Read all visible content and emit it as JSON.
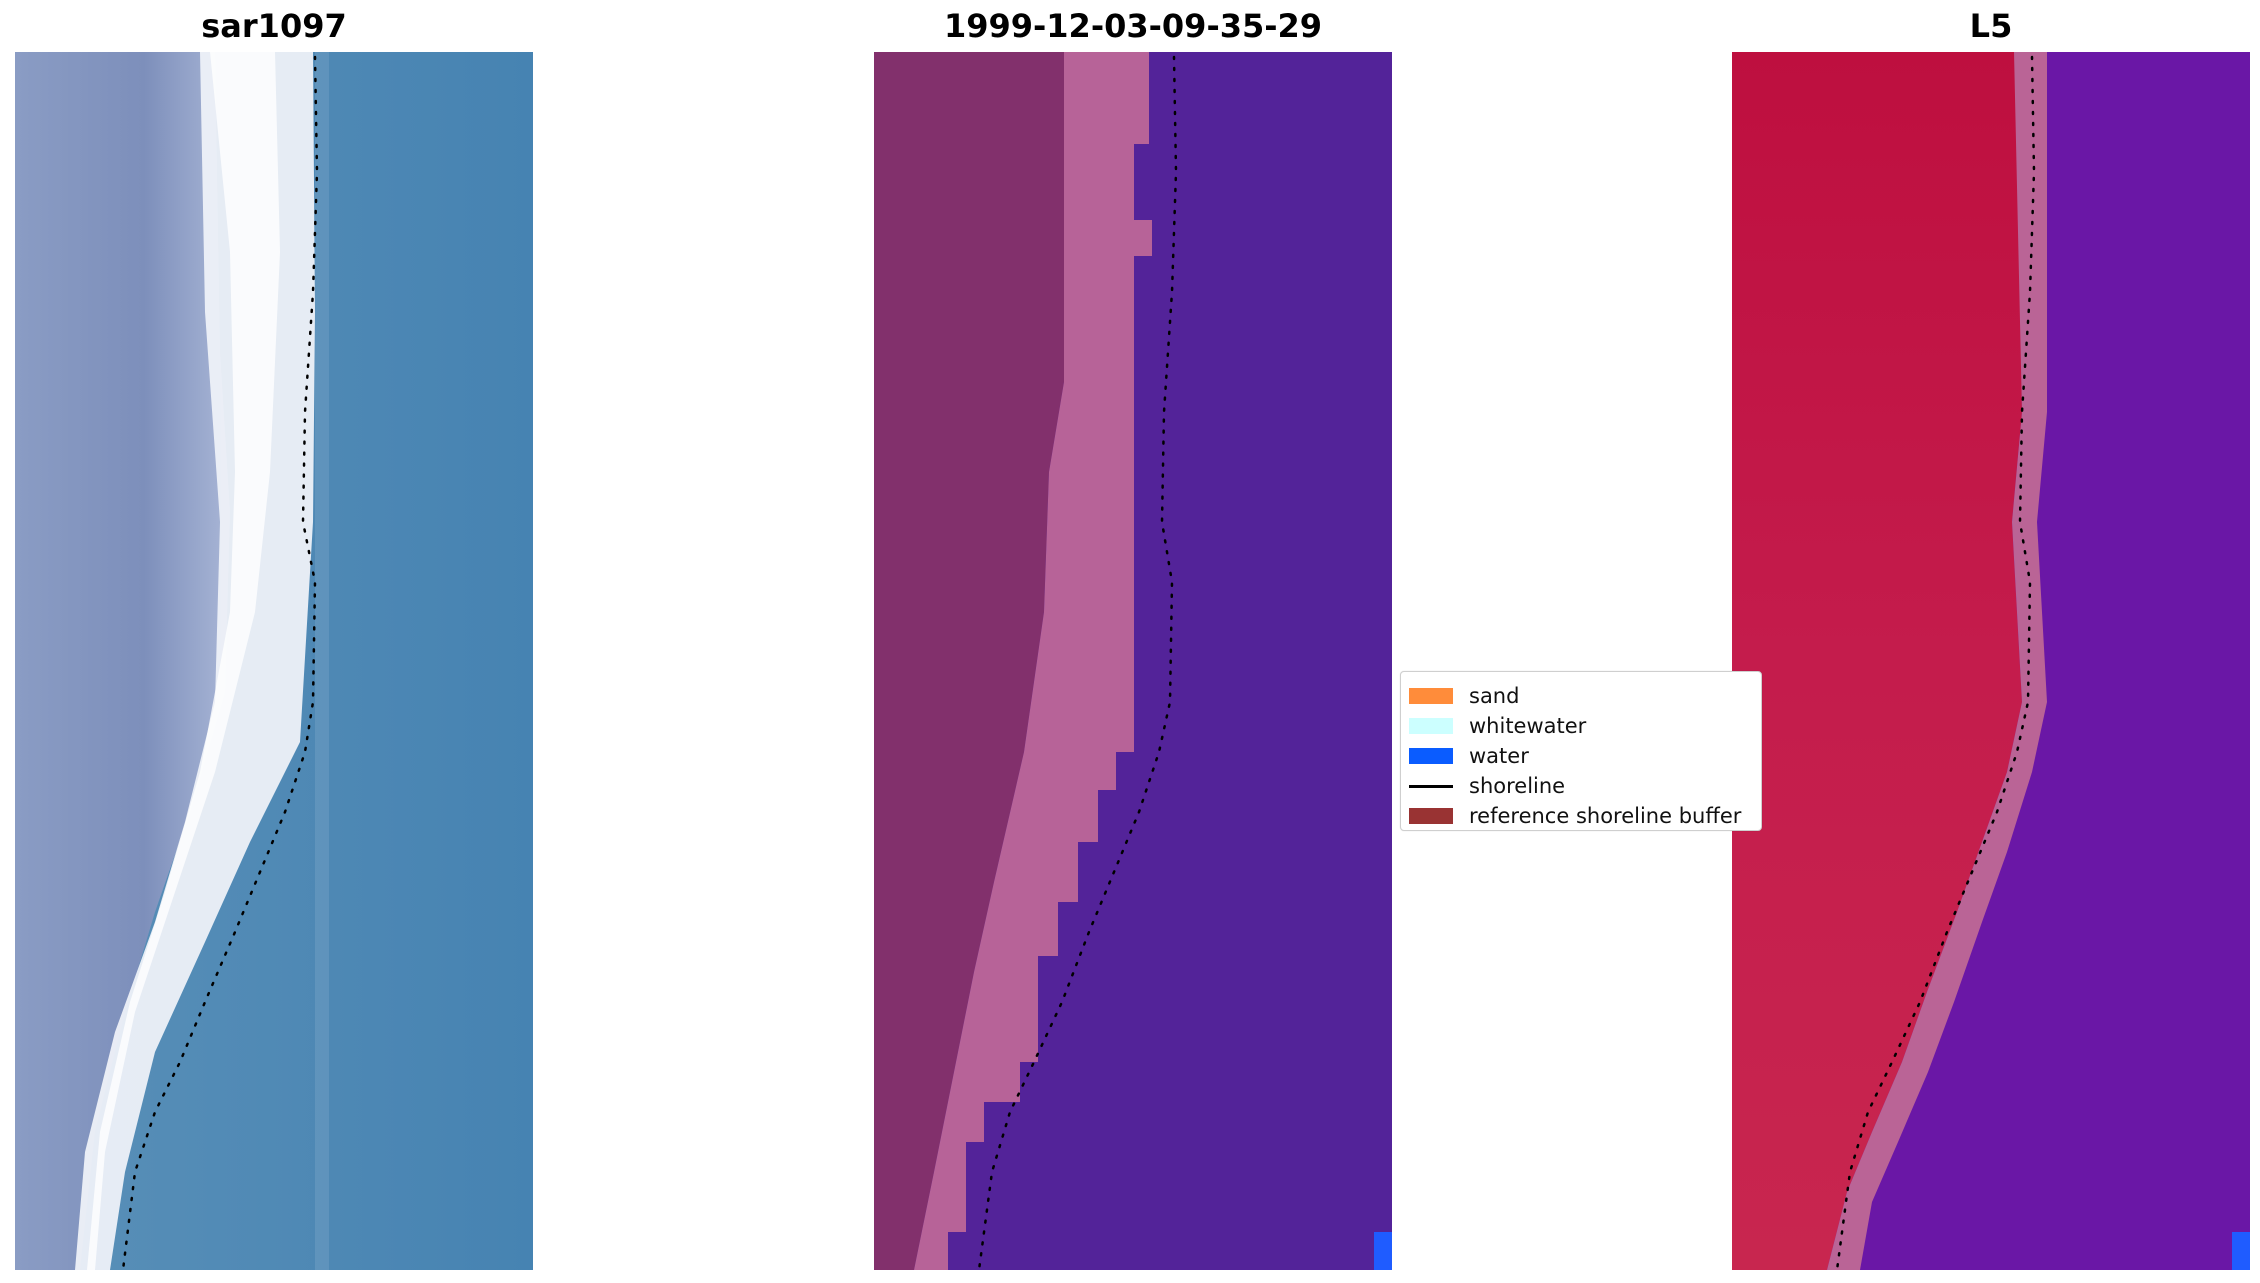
{
  "panels": {
    "rgb": {
      "title": "sar1097"
    },
    "classification": {
      "title": "1999-12-03-09-35-29"
    },
    "index": {
      "title": "L5"
    }
  },
  "legend": {
    "items": [
      {
        "label": "sand",
        "kind": "patch",
        "color": "#ff8c3a"
      },
      {
        "label": "whitewater",
        "kind": "patch",
        "color": "#ccffff"
      },
      {
        "label": "water",
        "kind": "patch",
        "color": "#0a5cff"
      },
      {
        "label": "shoreline",
        "kind": "line",
        "color": "#000000"
      },
      {
        "label": "reference shoreline buffer",
        "kind": "patch",
        "color": "#993333"
      }
    ]
  },
  "colors": {
    "rgb_water": "#4a87b4",
    "rgb_land": "#7f93bd",
    "rgb_surf": "#f4f6fb",
    "class_land": "#84306e",
    "class_buffer": "#b76398",
    "class_water": "#532399",
    "class_water_pixel": "#1f5cff",
    "index_land": "#c01445",
    "index_buffer": "#ba6496",
    "index_water": "#6a17a6"
  }
}
